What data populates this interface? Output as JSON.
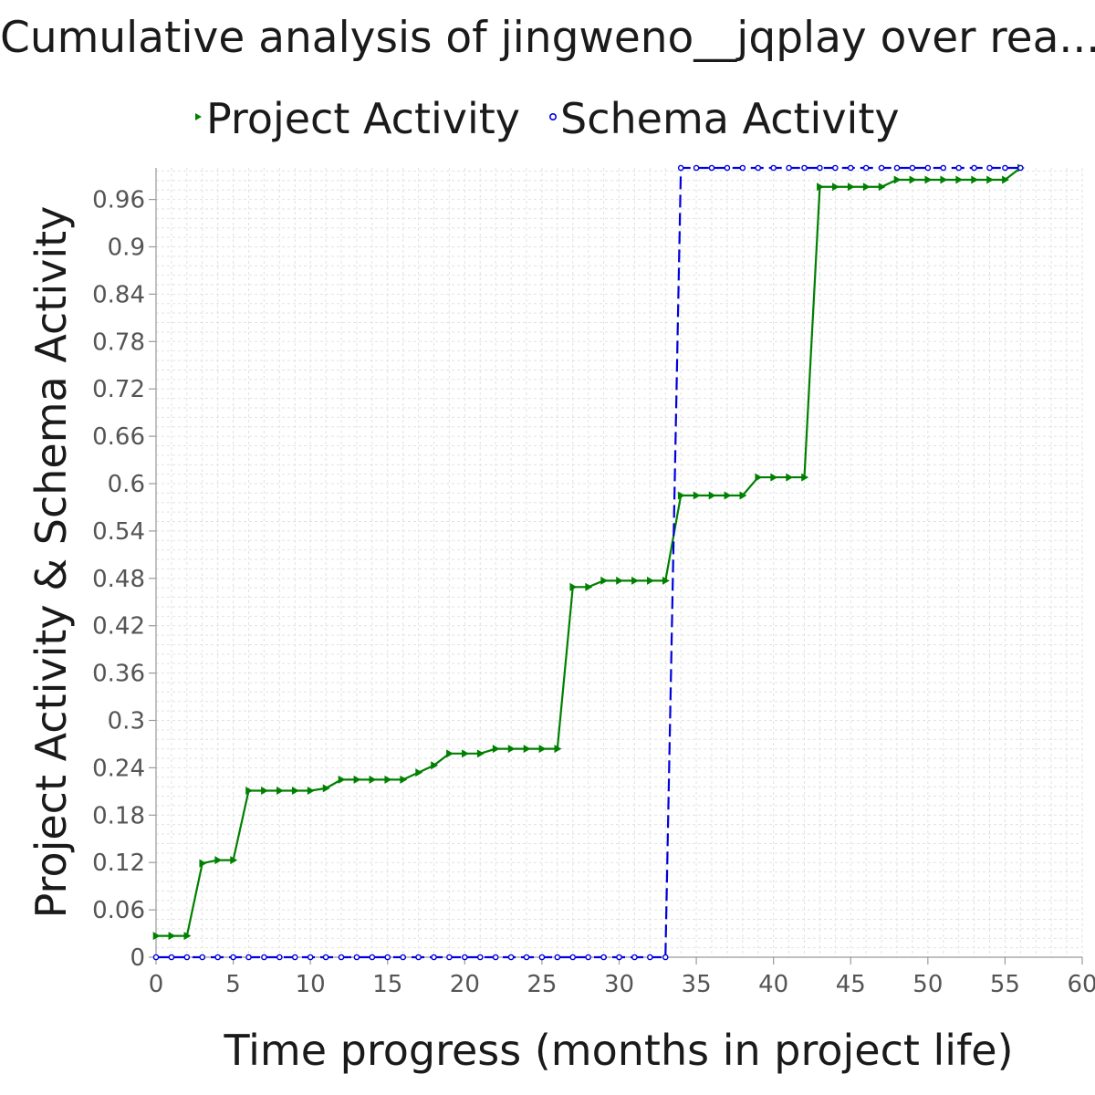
{
  "chart_data": {
    "type": "line",
    "title": "Cumulative analysis of jingweno__jqplay over rea...",
    "xlabel": "Time progress (months in project life)",
    "ylabel": "Project Activity & Schema Activity",
    "xlim": [
      0,
      60
    ],
    "ylim": [
      0,
      1.0
    ],
    "x_ticks": [
      "0",
      "5",
      "10",
      "15",
      "20",
      "25",
      "30",
      "35",
      "40",
      "45",
      "50",
      "55",
      "60"
    ],
    "y_ticks": [
      "0",
      "0.06",
      "0.12",
      "0.18",
      "0.24",
      "0.3",
      "0.36",
      "0.42",
      "0.48",
      "0.54",
      "0.6",
      "0.66",
      "0.72",
      "0.78",
      "0.84",
      "0.9",
      "0.96"
    ],
    "grid": true,
    "legend_position": "top",
    "series": [
      {
        "name": "Project Activity",
        "color": "#008000",
        "marker": "triangle-right",
        "line": "solid",
        "points": [
          [
            0,
            0.027
          ],
          [
            1,
            0.027
          ],
          [
            2,
            0.027
          ],
          [
            3,
            0.119
          ],
          [
            4,
            0.123
          ],
          [
            5,
            0.123
          ],
          [
            6,
            0.211
          ],
          [
            7,
            0.211
          ],
          [
            8,
            0.211
          ],
          [
            9,
            0.211
          ],
          [
            10,
            0.211
          ],
          [
            11,
            0.214
          ],
          [
            12,
            0.225
          ],
          [
            13,
            0.225
          ],
          [
            14,
            0.225
          ],
          [
            15,
            0.225
          ],
          [
            16,
            0.225
          ],
          [
            17,
            0.234
          ],
          [
            18,
            0.243
          ],
          [
            19,
            0.258
          ],
          [
            20,
            0.258
          ],
          [
            21,
            0.258
          ],
          [
            22,
            0.264
          ],
          [
            23,
            0.264
          ],
          [
            24,
            0.264
          ],
          [
            25,
            0.264
          ],
          [
            26,
            0.264
          ],
          [
            27,
            0.469
          ],
          [
            28,
            0.469
          ],
          [
            29,
            0.477
          ],
          [
            30,
            0.477
          ],
          [
            31,
            0.477
          ],
          [
            32,
            0.477
          ],
          [
            33,
            0.477
          ],
          [
            34,
            0.585
          ],
          [
            35,
            0.585
          ],
          [
            36,
            0.585
          ],
          [
            37,
            0.585
          ],
          [
            38,
            0.585
          ],
          [
            39,
            0.608
          ],
          [
            40,
            0.608
          ],
          [
            41,
            0.608
          ],
          [
            42,
            0.608
          ],
          [
            43,
            0.976
          ],
          [
            44,
            0.976
          ],
          [
            45,
            0.976
          ],
          [
            46,
            0.976
          ],
          [
            47,
            0.976
          ],
          [
            48,
            0.985
          ],
          [
            49,
            0.985
          ],
          [
            50,
            0.985
          ],
          [
            51,
            0.985
          ],
          [
            52,
            0.985
          ],
          [
            53,
            0.985
          ],
          [
            54,
            0.985
          ],
          [
            55,
            0.985
          ],
          [
            56,
            1.0
          ]
        ]
      },
      {
        "name": "Schema Activity",
        "color": "#0000dd",
        "marker": "circle",
        "line": "dashed",
        "points": [
          [
            0,
            0
          ],
          [
            1,
            0
          ],
          [
            2,
            0
          ],
          [
            3,
            0
          ],
          [
            4,
            0
          ],
          [
            5,
            0
          ],
          [
            6,
            0
          ],
          [
            7,
            0
          ],
          [
            8,
            0
          ],
          [
            9,
            0
          ],
          [
            10,
            0
          ],
          [
            11,
            0
          ],
          [
            12,
            0
          ],
          [
            13,
            0
          ],
          [
            14,
            0
          ],
          [
            15,
            0
          ],
          [
            16,
            0
          ],
          [
            17,
            0
          ],
          [
            18,
            0
          ],
          [
            19,
            0
          ],
          [
            20,
            0
          ],
          [
            21,
            0
          ],
          [
            22,
            0
          ],
          [
            23,
            0
          ],
          [
            24,
            0
          ],
          [
            25,
            0
          ],
          [
            26,
            0
          ],
          [
            27,
            0
          ],
          [
            28,
            0
          ],
          [
            29,
            0
          ],
          [
            30,
            0
          ],
          [
            31,
            0
          ],
          [
            32,
            0
          ],
          [
            33,
            0
          ],
          [
            34,
            1
          ],
          [
            35,
            1
          ],
          [
            36,
            1
          ],
          [
            37,
            1
          ],
          [
            38,
            1
          ],
          [
            39,
            1
          ],
          [
            40,
            1
          ],
          [
            41,
            1
          ],
          [
            42,
            1
          ],
          [
            43,
            1
          ],
          [
            44,
            1
          ],
          [
            45,
            1
          ],
          [
            46,
            1
          ],
          [
            47,
            1
          ],
          [
            48,
            1
          ],
          [
            49,
            1
          ],
          [
            50,
            1
          ],
          [
            51,
            1
          ],
          [
            52,
            1
          ],
          [
            53,
            1
          ],
          [
            54,
            1
          ],
          [
            55,
            1
          ],
          [
            56,
            1
          ]
        ]
      }
    ]
  }
}
